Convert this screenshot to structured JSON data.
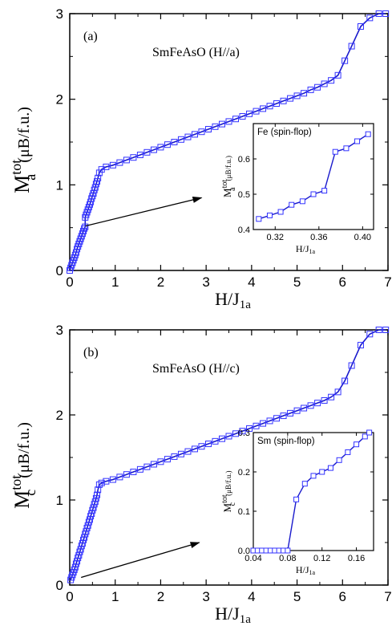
{
  "chart_data": [
    {
      "type": "scatter",
      "panel_label": "(a)",
      "title": "SmFeAsO (H//a)",
      "xlabel_main": "H/J",
      "xlabel_sub": "1a",
      "ylabel_main": "M",
      "ylabel_sup": "tot",
      "ylabel_subscript": "a",
      "ylabel_unit": "(μB/f.u.)",
      "xlim": [
        0,
        7
      ],
      "ylim": [
        0,
        3
      ],
      "xticks": [
        "0",
        "1",
        "2",
        "3",
        "4",
        "5",
        "6",
        "7"
      ],
      "yticks": [
        "0",
        "1",
        "2",
        "3"
      ],
      "marker": "open-square",
      "color": "#3333ff",
      "line_color": "#1a1acc",
      "series": [
        {
          "x": [
            0.0,
            0.02,
            0.04,
            0.06,
            0.08,
            0.1,
            0.12,
            0.14,
            0.16,
            0.18,
            0.2,
            0.22,
            0.24,
            0.26,
            0.28,
            0.3,
            0.32,
            0.34,
            0.34,
            0.36,
            0.38,
            0.4,
            0.42,
            0.44,
            0.46,
            0.48,
            0.5,
            0.52,
            0.54,
            0.56,
            0.58,
            0.6,
            0.62,
            0.65,
            0.7,
            0.8,
            0.95,
            1.1,
            1.25,
            1.4,
            1.55,
            1.7,
            1.85,
            2.0,
            2.15,
            2.3,
            2.45,
            2.6,
            2.75,
            2.9,
            3.05,
            3.2,
            3.35,
            3.5,
            3.65,
            3.8,
            3.95,
            4.1,
            4.25,
            4.4,
            4.55,
            4.7,
            4.85,
            5.0,
            5.15,
            5.3,
            5.45,
            5.6,
            5.75,
            5.9,
            6.05,
            6.2,
            6.4,
            6.6,
            6.8,
            6.95
          ],
          "y": [
            0.0,
            0.03,
            0.06,
            0.09,
            0.12,
            0.15,
            0.18,
            0.21,
            0.25,
            0.28,
            0.31,
            0.34,
            0.37,
            0.4,
            0.43,
            0.46,
            0.49,
            0.51,
            0.62,
            0.65,
            0.68,
            0.71,
            0.74,
            0.77,
            0.8,
            0.84,
            0.87,
            0.9,
            0.94,
            0.97,
            1.01,
            1.04,
            1.08,
            1.14,
            1.18,
            1.21,
            1.23,
            1.26,
            1.29,
            1.32,
            1.35,
            1.38,
            1.41,
            1.44,
            1.47,
            1.5,
            1.53,
            1.56,
            1.59,
            1.62,
            1.65,
            1.68,
            1.71,
            1.74,
            1.77,
            1.8,
            1.83,
            1.86,
            1.89,
            1.92,
            1.95,
            1.98,
            2.01,
            2.04,
            2.07,
            2.11,
            2.14,
            2.18,
            2.22,
            2.28,
            2.45,
            2.62,
            2.85,
            2.95,
            3.0,
            3.0
          ]
        }
      ],
      "arrow": {
        "from": [
          0.35,
          0.52
        ],
        "to": [
          2.9,
          0.85
        ]
      },
      "inset": {
        "title": "Fe (spin-flop)",
        "xlabel_main": "H/J",
        "xlabel_sub": "1a",
        "ylabel_main": "M",
        "ylabel_sup": "tot",
        "ylabel_subscript": "a",
        "ylabel_unit": "(μB/f.u.)",
        "xlim": [
          0.3,
          0.41
        ],
        "ylim": [
          0.4,
          0.7
        ],
        "xticks": [
          "0.32",
          "0.36",
          "0.40"
        ],
        "xtick_values": [
          0.32,
          0.36,
          0.4
        ],
        "yticks": [
          "0.4",
          "0.5",
          "0.6"
        ],
        "ytick_values": [
          0.4,
          0.5,
          0.6
        ],
        "x": [
          0.305,
          0.315,
          0.325,
          0.335,
          0.345,
          0.355,
          0.365,
          0.375,
          0.385,
          0.395,
          0.405
        ],
        "y": [
          0.43,
          0.44,
          0.45,
          0.47,
          0.48,
          0.5,
          0.51,
          0.62,
          0.63,
          0.65,
          0.67
        ]
      }
    },
    {
      "type": "scatter",
      "panel_label": "(b)",
      "title": "SmFeAsO (H//c)",
      "xlabel_main": "H/J",
      "xlabel_sub": "1a",
      "ylabel_main": "M",
      "ylabel_sup": "tot",
      "ylabel_subscript": "c",
      "ylabel_unit": "(μB/f.u.)",
      "xlim": [
        0,
        7
      ],
      "ylim": [
        0,
        3
      ],
      "xticks": [
        "0",
        "1",
        "2",
        "3",
        "4",
        "5",
        "6",
        "7"
      ],
      "yticks": [
        "0",
        "1",
        "2",
        "3"
      ],
      "marker": "open-square",
      "color": "#3333ff",
      "line_color": "#1a1acc",
      "series": [
        {
          "x": [
            0.02,
            0.04,
            0.06,
            0.08,
            0.1,
            0.12,
            0.14,
            0.16,
            0.18,
            0.2,
            0.22,
            0.24,
            0.26,
            0.28,
            0.3,
            0.32,
            0.34,
            0.36,
            0.38,
            0.4,
            0.42,
            0.44,
            0.46,
            0.48,
            0.5,
            0.52,
            0.54,
            0.56,
            0.58,
            0.6,
            0.62,
            0.65,
            0.7,
            0.8,
            0.95,
            1.1,
            1.25,
            1.4,
            1.55,
            1.7,
            1.85,
            2.0,
            2.15,
            2.3,
            2.45,
            2.6,
            2.75,
            2.9,
            3.05,
            3.2,
            3.35,
            3.5,
            3.65,
            3.8,
            3.95,
            4.1,
            4.25,
            4.4,
            4.55,
            4.7,
            4.85,
            5.0,
            5.15,
            5.3,
            5.45,
            5.6,
            5.75,
            5.9,
            6.05,
            6.2,
            6.4,
            6.6,
            6.8,
            6.95
          ],
          "y": [
            0.06,
            0.09,
            0.12,
            0.15,
            0.18,
            0.21,
            0.25,
            0.28,
            0.32,
            0.35,
            0.39,
            0.42,
            0.46,
            0.49,
            0.53,
            0.56,
            0.6,
            0.63,
            0.67,
            0.7,
            0.74,
            0.77,
            0.81,
            0.84,
            0.88,
            0.91,
            0.95,
            0.98,
            1.02,
            1.06,
            1.12,
            1.18,
            1.2,
            1.22,
            1.24,
            1.27,
            1.3,
            1.33,
            1.36,
            1.39,
            1.42,
            1.45,
            1.48,
            1.51,
            1.54,
            1.57,
            1.6,
            1.63,
            1.66,
            1.69,
            1.72,
            1.75,
            1.78,
            1.81,
            1.84,
            1.87,
            1.9,
            1.93,
            1.96,
            1.99,
            2.02,
            2.05,
            2.08,
            2.11,
            2.14,
            2.17,
            2.21,
            2.27,
            2.4,
            2.58,
            2.82,
            2.95,
            3.0,
            3.0
          ]
        }
      ],
      "arrow": {
        "from": [
          0.25,
          0.09
        ],
        "to": [
          2.85,
          0.5
        ]
      },
      "inset": {
        "title": "Sm (spin-flop)",
        "xlabel_main": "H/J",
        "xlabel_sub": "1a",
        "ylabel_main": "M",
        "ylabel_sup": "tot",
        "ylabel_subscript": "c",
        "ylabel_unit": "(μB/f.u.)",
        "xlim": [
          0.04,
          0.18
        ],
        "ylim": [
          0,
          0.3
        ],
        "xticks": [
          "0.04",
          "0.08",
          "0.12",
          "0.16"
        ],
        "xtick_values": [
          0.04,
          0.08,
          0.12,
          0.16
        ],
        "yticks": [
          "0.0",
          "0.1",
          "0.2",
          "0.3"
        ],
        "ytick_values": [
          0.0,
          0.1,
          0.2,
          0.3
        ],
        "x": [
          0.04,
          0.045,
          0.05,
          0.055,
          0.06,
          0.065,
          0.07,
          0.075,
          0.08,
          0.09,
          0.1,
          0.11,
          0.12,
          0.13,
          0.14,
          0.15,
          0.16,
          0.17,
          0.175
        ],
        "y": [
          0,
          0,
          0,
          0,
          0,
          0,
          0,
          0,
          0,
          0.13,
          0.17,
          0.19,
          0.2,
          0.21,
          0.23,
          0.25,
          0.27,
          0.29,
          0.3
        ]
      }
    }
  ]
}
